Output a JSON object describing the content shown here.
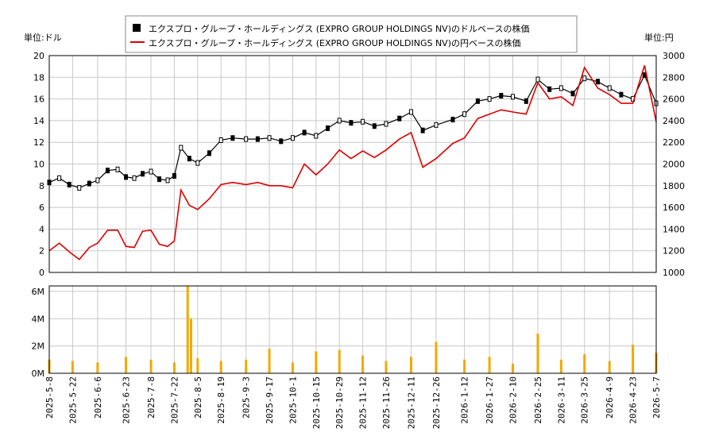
{
  "chart_data": {
    "type": "line",
    "legend": {
      "placement": "top-center",
      "entries": [
        {
          "label": "エクスプロ・グループ・ホールディングス (EXPRO GROUP HOLDINGS NV)のドルベースの株価",
          "color": "#000000",
          "marker": "square"
        },
        {
          "label": "エクスプロ・グループ・ホールディングス (EXPRO GROUP HOLDINGS NV)の円ベースの株価",
          "color": "#dd0000",
          "marker": "line"
        }
      ]
    },
    "left_unit_label": "単位:ドル",
    "right_unit_label": "単位:円",
    "left_axis": {
      "ylim": [
        0,
        20
      ],
      "ticks": [
        0,
        2,
        4,
        6,
        8,
        10,
        12,
        14,
        16,
        18,
        20
      ]
    },
    "right_axis": {
      "ylim": [
        1000,
        3000
      ],
      "ticks": [
        1000,
        1200,
        1400,
        1600,
        1800,
        2000,
        2200,
        2400,
        2600,
        2800,
        3000
      ]
    },
    "volume_axis": {
      "ylim": [
        0,
        6.4
      ],
      "ticks": [
        0,
        2,
        4,
        6
      ],
      "tick_labels": [
        "0M",
        "2M",
        "4M",
        "6M"
      ]
    },
    "x_ticks": [
      "2025-5-8",
      "2025-5-22",
      "2025-6-6",
      "2025-6-23",
      "2025-7-8",
      "2025-7-22",
      "2025-8-5",
      "2025-8-19",
      "2025-9-3",
      "2025-9-17",
      "2025-10-1",
      "2025-10-15",
      "2025-10-29",
      "2025-11-12",
      "2025-11-26",
      "2025-12-11",
      "2025-12-26",
      "2026-1-12",
      "2026-1-27",
      "2026-2-10",
      "2026-2-25",
      "2026-3-11",
      "2026-3-25",
      "2026-4-9",
      "2026-4-23",
      "2026-5-7"
    ],
    "grid": true,
    "colors": {
      "usd": "#000000",
      "jpy": "#dd0000",
      "volume": "#f2a900",
      "grid": "#c8c8c8"
    },
    "series": [
      {
        "name": "エクスプロ・グループ・ホールディングス (EXPRO GROUP HOLDINGS NV)のドルベースの株価",
        "unit": "USD",
        "x": [
          "2025-5-8",
          "2025-5-14",
          "2025-5-20",
          "2025-5-26",
          "2025-6-1",
          "2025-6-6",
          "2025-6-12",
          "2025-6-18",
          "2025-6-23",
          "2025-6-28",
          "2025-7-3",
          "2025-7-8",
          "2025-7-13",
          "2025-7-18",
          "2025-7-22",
          "2025-7-26",
          "2025-7-31",
          "2025-8-5",
          "2025-8-12",
          "2025-8-19",
          "2025-8-26",
          "2025-9-3",
          "2025-9-10",
          "2025-9-17",
          "2025-9-24",
          "2025-10-1",
          "2025-10-8",
          "2025-10-15",
          "2025-10-22",
          "2025-10-29",
          "2025-11-5",
          "2025-11-12",
          "2025-11-19",
          "2025-11-26",
          "2025-12-4",
          "2025-12-11",
          "2025-12-18",
          "2025-12-26",
          "2026-1-5",
          "2026-1-12",
          "2026-1-20",
          "2026-1-27",
          "2026-2-3",
          "2026-2-10",
          "2026-2-18",
          "2026-2-25",
          "2026-3-4",
          "2026-3-11",
          "2026-3-18",
          "2026-3-25",
          "2026-4-2",
          "2026-4-9",
          "2026-4-16",
          "2026-4-23",
          "2026-4-30",
          "2026-5-7"
        ],
        "values": [
          8.3,
          8.7,
          8.1,
          7.8,
          8.2,
          8.5,
          9.4,
          9.5,
          8.8,
          8.7,
          9.1,
          9.3,
          8.6,
          8.5,
          8.9,
          11.5,
          10.5,
          10.1,
          11.0,
          12.2,
          12.4,
          12.3,
          12.3,
          12.4,
          12.1,
          12.4,
          12.9,
          12.6,
          13.3,
          14.0,
          13.8,
          13.9,
          13.5,
          13.7,
          14.2,
          14.8,
          13.1,
          13.6,
          14.1,
          14.6,
          15.8,
          16.0,
          16.3,
          16.2,
          15.8,
          17.8,
          16.9,
          17.0,
          16.5,
          17.9,
          17.6,
          17.0,
          16.4,
          16.0,
          18.2,
          15.6
        ]
      },
      {
        "name": "エクスプロ・グループ・ホールディングス (EXPRO GROUP HOLDINGS NV)の円ベースの株価",
        "unit": "JPY",
        "x": [
          "2025-5-8",
          "2025-5-14",
          "2025-5-20",
          "2025-5-26",
          "2025-6-1",
          "2025-6-6",
          "2025-6-12",
          "2025-6-18",
          "2025-6-23",
          "2025-6-28",
          "2025-7-3",
          "2025-7-8",
          "2025-7-13",
          "2025-7-18",
          "2025-7-22",
          "2025-7-26",
          "2025-7-31",
          "2025-8-5",
          "2025-8-12",
          "2025-8-19",
          "2025-8-26",
          "2025-9-3",
          "2025-9-10",
          "2025-9-17",
          "2025-9-24",
          "2025-10-1",
          "2025-10-8",
          "2025-10-15",
          "2025-10-22",
          "2025-10-29",
          "2025-11-5",
          "2025-11-12",
          "2025-11-19",
          "2025-11-26",
          "2025-12-4",
          "2025-12-11",
          "2025-12-18",
          "2025-12-26",
          "2026-1-5",
          "2026-1-12",
          "2026-1-20",
          "2026-1-27",
          "2026-2-3",
          "2026-2-10",
          "2026-2-18",
          "2026-2-25",
          "2026-3-4",
          "2026-3-11",
          "2026-3-18",
          "2026-3-25",
          "2026-4-2",
          "2026-4-9",
          "2026-4-16",
          "2026-4-23",
          "2026-4-30",
          "2026-5-7"
        ],
        "values": [
          1200,
          1270,
          1190,
          1120,
          1230,
          1270,
          1390,
          1390,
          1240,
          1230,
          1380,
          1390,
          1260,
          1240,
          1290,
          1760,
          1620,
          1580,
          1680,
          1810,
          1830,
          1810,
          1830,
          1800,
          1800,
          1780,
          2000,
          1900,
          2000,
          2130,
          2050,
          2120,
          2060,
          2130,
          2230,
          2290,
          1970,
          2050,
          2190,
          2240,
          2420,
          2460,
          2500,
          2480,
          2460,
          2750,
          2600,
          2620,
          2540,
          2890,
          2700,
          2640,
          2560,
          2560,
          2910,
          2390
        ]
      },
      {
        "name": "",
        "unit": "M",
        "x": [
          "2025-5-8",
          "2025-5-22",
          "2025-6-6",
          "2025-6-23",
          "2025-7-8",
          "2025-7-22",
          "2025-7-30",
          "2025-8-1",
          "2025-8-5",
          "2025-8-19",
          "2025-9-3",
          "2025-9-17",
          "2025-10-1",
          "2025-10-15",
          "2025-10-29",
          "2025-11-12",
          "2025-11-26",
          "2025-12-11",
          "2025-12-26",
          "2026-1-12",
          "2026-1-27",
          "2026-2-10",
          "2026-2-25",
          "2026-3-11",
          "2026-3-25",
          "2026-4-9",
          "2026-4-23",
          "2026-5-7"
        ],
        "values": [
          1.0,
          0.9,
          0.8,
          1.2,
          1.0,
          0.8,
          6.4,
          4.0,
          1.1,
          0.9,
          1.0,
          1.8,
          0.8,
          1.6,
          1.7,
          1.3,
          0.9,
          1.2,
          2.3,
          1.0,
          1.2,
          0.7,
          2.9,
          1.0,
          1.4,
          0.9,
          2.1,
          1.5
        ]
      }
    ]
  }
}
